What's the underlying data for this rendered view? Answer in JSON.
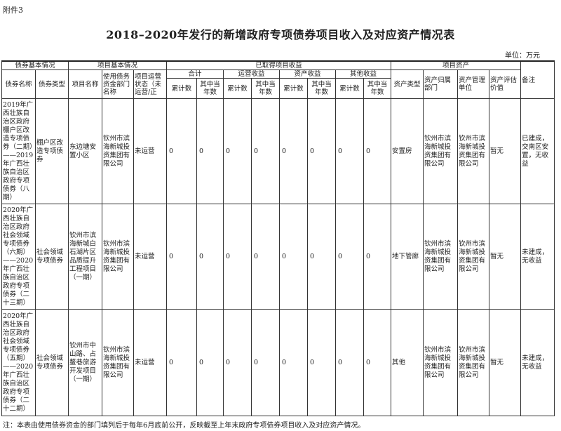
{
  "attachment_label": "附件3",
  "title": "2018–2020年发行的新增政府专项债券项目收入及对应资产情况表",
  "unit": "单位：万元",
  "headers": {
    "group_bond": "债券基本情况",
    "group_project": "项目基本情况",
    "group_income": "已取得项目收益",
    "group_assets": "项目资产",
    "remarks": "备注",
    "bond_name": "债券名称",
    "bond_type": "债券类型",
    "project_name": "项目名称",
    "dept": "使用债务资金部门名称",
    "status": "项目运营状态（未运营/正",
    "total": "合计",
    "operating": "运营收益",
    "asset_income": "资产收益",
    "other": "其他收益",
    "cumulative": "累计数",
    "current_year": "其中当年数",
    "asset_type": "资产类型",
    "asset_owner": "资产归属部门",
    "asset_manager": "资产管理单位",
    "asset_value": "资产评估价值"
  },
  "rows": [
    {
      "bond_name": "2019年广西壮族自治区政府棚户区改造专项债券（二期）——2019年广西壮族自治区政府专项债券（八期）",
      "bond_type": "棚户区改造专项债券",
      "project_name": "东边塘安置小区",
      "dept": "钦州市滨海新城投资集团有限公司",
      "status": "未运营",
      "values": [
        "0",
        "0",
        "0",
        "0",
        "0",
        "0",
        "0",
        "0"
      ],
      "asset_type": "安置房",
      "asset_owner": "钦州市滨海新城投资集团有限公司",
      "asset_manager": "钦州市滨海新城投资集团有限公司",
      "asset_value": "暂无",
      "remarks": "已建成，交南区安置，无收益"
    },
    {
      "bond_name": "2020年广西壮族自治区政府社会领域专项债券（六期）——2020年广西壮族自治区政府专项债券（二十三期）",
      "bond_type": "社会领域专项债券",
      "project_name": "钦州市滨海新城白石湖片区品质提升工程项目（一期）",
      "dept": "钦州市滨海新城投资集团有限公司",
      "status": "未运营",
      "values": [
        "0",
        "0",
        "0",
        "0",
        "0",
        "0",
        "0",
        "0"
      ],
      "asset_type": "地下管廊",
      "asset_owner": "钦州市滨海新城投资集团有限公司",
      "asset_manager": "钦州市滨海新城投资集团有限公司",
      "asset_value": "暂无",
      "remarks": "未建成，无收益"
    },
    {
      "bond_name": "2020年广西壮族自治区政府社会领域专项债券（五期）——2020年广西壮族自治区政府专项债券（二十二期）",
      "bond_type": "社会领域专项债券",
      "project_name": "钦州市中山路、占鳌巷旅游开发项目（一期）",
      "dept": "钦州市滨海新城投资集团有限公司",
      "status": "未运营",
      "values": [
        "0",
        "0",
        "0",
        "0",
        "0",
        "0",
        "0",
        "0"
      ],
      "asset_type": "其他",
      "asset_owner": "钦州市滨海新城投资集团有限公司",
      "asset_manager": "钦州市滨海新城投资集团有限公司",
      "asset_value": "暂无",
      "remarks": "未建成，无收益"
    }
  ],
  "note": "注：本表由使用债券资金的部门填列后于每年6月底前公开，反映截至上年末政府专项债券项目收入及对应资产情况。"
}
